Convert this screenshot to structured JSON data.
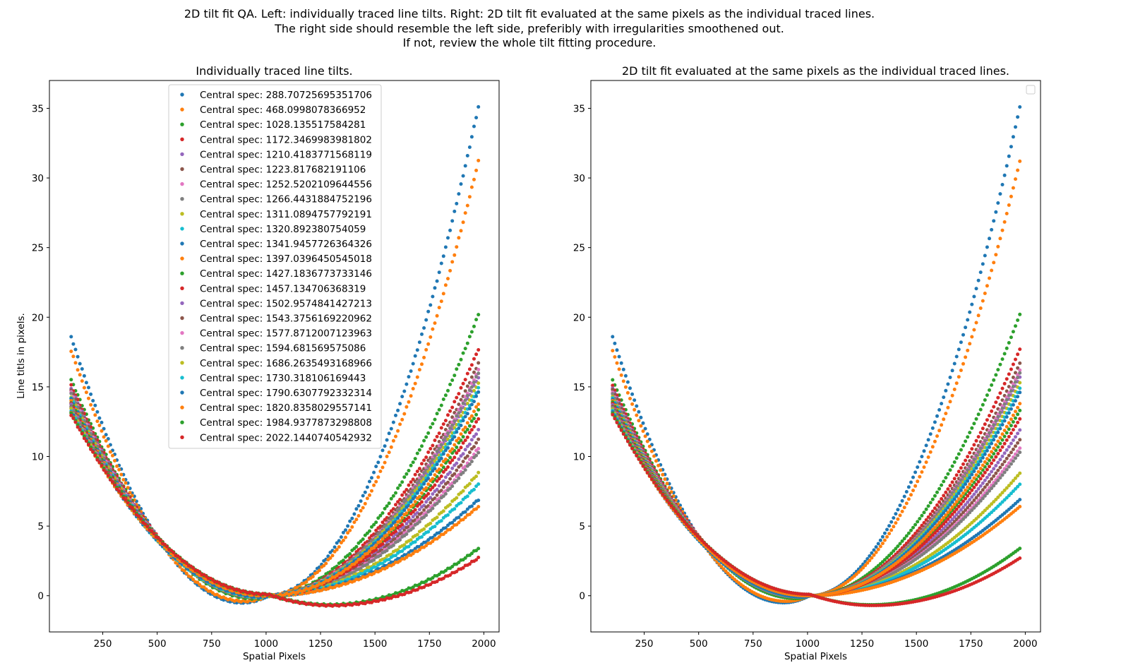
{
  "suptitle": {
    "line1": "2D tilt fit QA. Left: individually traced line tilts. Right: 2D tilt fit evaluated at the same pixels as the individual traced lines.",
    "line2": "The right side should resemble the left side, preferibly with irregularities smoothened out.",
    "line3": "If not, review the whole tilt fitting procedure."
  },
  "chart_data": [
    {
      "type": "scatter",
      "title": "Individually traced line tilts.",
      "xlabel": "Spatial Pixels",
      "ylabel": "Line titls in pixels.",
      "xlim": [
        5,
        2070
      ],
      "ylim": [
        -2.6,
        37.0
      ],
      "xticks": [
        250,
        500,
        750,
        1000,
        1250,
        1500,
        1750,
        2000
      ],
      "yticks": [
        0,
        5,
        10,
        15,
        20,
        25,
        30,
        35
      ],
      "legend": "top-center",
      "grid": false
    },
    {
      "type": "scatter",
      "title": "2D tilt fit evaluated at the same pixels as the individual traced lines.",
      "xlabel": "Spatial Pixels",
      "ylabel": "",
      "xlim": [
        5,
        2070
      ],
      "ylim": [
        -2.6,
        37.0
      ],
      "xticks": [
        250,
        500,
        750,
        1000,
        1250,
        1500,
        1750,
        2000
      ],
      "yticks": [
        0,
        5,
        10,
        15,
        20,
        25,
        30,
        35
      ],
      "legend": "top-right (empty)",
      "grid": false
    }
  ],
  "x_range": [
    105,
    1975
  ],
  "series": [
    {
      "name": "Central spec: 288.70725695351706",
      "color": "#1f77b4",
      "y": [
        18.6,
        -0.5,
        0.0,
        35.1
      ],
      "x_at": [
        105,
        890,
        1010,
        1975
      ]
    },
    {
      "name": "Central spec: 468.0998078366952",
      "color": "#ff7f0e",
      "y": [
        17.6,
        -0.4,
        0.0,
        31.2
      ],
      "x_at": [
        105,
        900,
        1010,
        1975
      ]
    },
    {
      "name": "Central spec: 1028.135517584281",
      "color": "#2ca02c",
      "y": [
        15.5,
        -0.2,
        0.0,
        20.2
      ],
      "x_at": [
        105,
        950,
        1010,
        1975
      ]
    },
    {
      "name": "Central spec: 1172.3469983981802",
      "color": "#d62728",
      "y": [
        15.1,
        -0.1,
        0.0,
        17.7
      ],
      "x_at": [
        105,
        960,
        1010,
        1975
      ]
    },
    {
      "name": "Central spec: 1210.4183771568119",
      "color": "#9467bd",
      "y": [
        14.9,
        -0.1,
        0.0,
        11.9
      ],
      "x_at": [
        105,
        960,
        1010,
        1975
      ]
    },
    {
      "name": "Central spec: 1223.817682191106",
      "color": "#8c564b",
      "y": [
        14.8,
        -0.1,
        0.0,
        11.2
      ],
      "x_at": [
        105,
        960,
        1010,
        1975
      ]
    },
    {
      "name": "Central spec: 1252.5202109644556",
      "color": "#e377c2",
      "y": [
        14.6,
        -0.1,
        0.0,
        10.6
      ],
      "x_at": [
        105,
        965,
        1010,
        1975
      ]
    },
    {
      "name": "Central spec: 1266.4431884752196",
      "color": "#7f7f7f",
      "y": [
        14.5,
        -0.1,
        0.0,
        10.3
      ],
      "x_at": [
        105,
        965,
        1010,
        1975
      ]
    },
    {
      "name": "Central spec: 1311.0894757792191",
      "color": "#bcbd22",
      "y": [
        14.3,
        -0.1,
        0.0,
        8.8
      ],
      "x_at": [
        105,
        970,
        1010,
        1975
      ]
    },
    {
      "name": "Central spec: 1320.892380754059",
      "color": "#17becf",
      "y": [
        14.2,
        -0.1,
        0.0,
        8.0
      ],
      "x_at": [
        105,
        970,
        1010,
        1975
      ]
    },
    {
      "name": "Central spec: 1341.9457726364326",
      "color": "#1f77b4",
      "y": [
        14.1,
        -0.1,
        0.0,
        6.9
      ],
      "x_at": [
        105,
        975,
        1010,
        1975
      ]
    },
    {
      "name": "Central spec: 1397.0396450545018",
      "color": "#ff7f0e",
      "y": [
        14.0,
        -0.1,
        0.0,
        6.4
      ],
      "x_at": [
        105,
        975,
        1010,
        1975
      ]
    },
    {
      "name": "Central spec: 1427.1836773733146",
      "color": "#2ca02c",
      "y": [
        13.9,
        -0.1,
        0.0,
        13.3
      ],
      "x_at": [
        105,
        975,
        1010,
        1975
      ]
    },
    {
      "name": "Central spec: 1457.134706368319",
      "color": "#d62728",
      "y": [
        13.8,
        -0.1,
        0.0,
        12.7
      ],
      "x_at": [
        105,
        975,
        1010,
        1975
      ]
    },
    {
      "name": "Central spec: 1502.9574841427213",
      "color": "#9467bd",
      "y": [
        13.7,
        -0.1,
        0.0,
        15.7
      ],
      "x_at": [
        105,
        980,
        1010,
        1975
      ]
    },
    {
      "name": "Central spec: 1543.3756169220962",
      "color": "#8c564b",
      "y": [
        13.6,
        -0.1,
        0.0,
        16.7
      ],
      "x_at": [
        105,
        980,
        1010,
        1975
      ]
    },
    {
      "name": "Central spec: 1577.8712007123963",
      "color": "#e377c2",
      "y": [
        13.5,
        -0.1,
        0.0,
        16.2
      ],
      "x_at": [
        105,
        980,
        1010,
        1975
      ]
    },
    {
      "name": "Central spec: 1594.681569575086",
      "color": "#7f7f7f",
      "y": [
        13.5,
        -0.1,
        0.0,
        16.0
      ],
      "x_at": [
        105,
        980,
        1010,
        1975
      ]
    },
    {
      "name": "Central spec: 1686.2635493168966",
      "color": "#bcbd22",
      "y": [
        13.4,
        -0.1,
        0.0,
        15.3
      ],
      "x_at": [
        105,
        985,
        1010,
        1975
      ]
    },
    {
      "name": "Central spec: 1730.318106169443",
      "color": "#17becf",
      "y": [
        13.3,
        -0.1,
        0.0,
        14.9
      ],
      "x_at": [
        105,
        985,
        1010,
        1975
      ]
    },
    {
      "name": "Central spec: 1790.6307792332314",
      "color": "#1f77b4",
      "y": [
        13.2,
        -0.1,
        0.0,
        14.6
      ],
      "x_at": [
        105,
        990,
        1010,
        1975
      ]
    },
    {
      "name": "Central spec: 1820.8358029557141",
      "color": "#ff7f0e",
      "y": [
        13.1,
        0.0,
        0.0,
        13.8
      ],
      "x_at": [
        105,
        995,
        1010,
        1975
      ]
    },
    {
      "name": "Central spec: 1984.9377873298808",
      "color": "#2ca02c",
      "y": [
        13.1,
        0.1,
        -0.65,
        3.4
      ],
      "x_at": [
        105,
        1010,
        1290,
        1975
      ]
    },
    {
      "name": "Central spec: 2022.1440740542932",
      "color": "#d62728",
      "y": [
        13.0,
        0.1,
        -0.7,
        2.7
      ],
      "x_at": [
        105,
        1010,
        1300,
        1975
      ]
    }
  ]
}
